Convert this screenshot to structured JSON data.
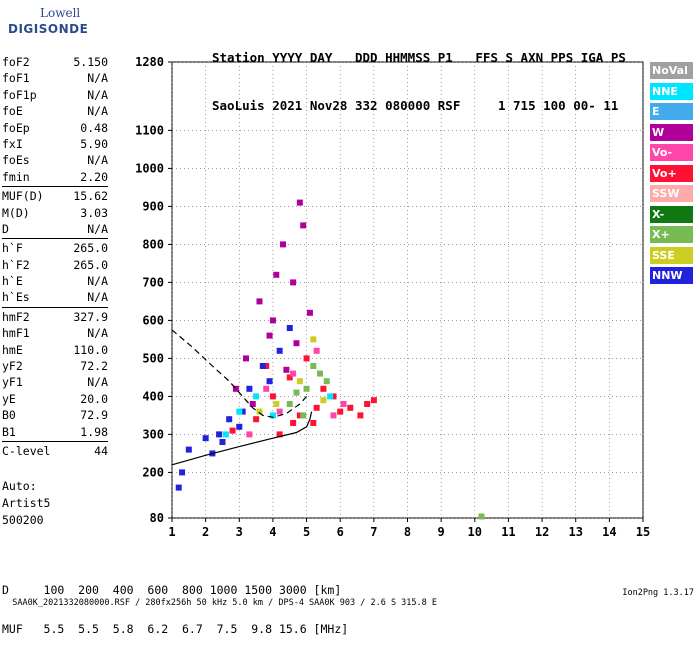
{
  "logo": {
    "brand": "Lowell",
    "product": "DIGISONDE"
  },
  "header": {
    "line1": "Station YYYY DAY   DDD HHMMSS P1   FFS S AXN PPS IGA PS",
    "line2": "SaoLuis 2021 Nov28 332 080000 RSF     1 715 100 00- 11"
  },
  "params": {
    "group1": [
      {
        "label": "foF2",
        "value": "5.150"
      },
      {
        "label": "foF1",
        "value": "N/A"
      },
      {
        "label": "foF1p",
        "value": "N/A"
      },
      {
        "label": "foE",
        "value": "N/A"
      },
      {
        "label": "foEp",
        "value": "0.48"
      },
      {
        "label": "fxI",
        "value": "5.90"
      },
      {
        "label": "foEs",
        "value": "N/A"
      },
      {
        "label": "fmin",
        "value": "2.20"
      }
    ],
    "group2": [
      {
        "label": "MUF(D)",
        "value": "15.62"
      },
      {
        "label": "M(D)",
        "value": "3.03"
      },
      {
        "label": "D",
        "value": "N/A"
      }
    ],
    "group3": [
      {
        "label": "h`F",
        "value": "265.0"
      },
      {
        "label": "h`F2",
        "value": "265.0"
      },
      {
        "label": "h`E",
        "value": "N/A"
      },
      {
        "label": "h`Es",
        "value": "N/A"
      }
    ],
    "group4": [
      {
        "label": "hmF2",
        "value": "327.9"
      },
      {
        "label": "hmF1",
        "value": "N/A"
      },
      {
        "label": "hmE",
        "value": "110.0"
      },
      {
        "label": "yF2",
        "value": "72.2"
      },
      {
        "label": "yF1",
        "value": "N/A"
      },
      {
        "label": "yE",
        "value": "20.0"
      },
      {
        "label": "B0",
        "value": "72.9"
      },
      {
        "label": "B1",
        "value": "1.98"
      }
    ],
    "group5": [
      {
        "label": "C-level",
        "value": "44"
      }
    ]
  },
  "auto": {
    "line1": "Auto:",
    "line2": "Artist5",
    "line3": "500200"
  },
  "legend": [
    {
      "label": "NoVal",
      "color": "#a0a0a0"
    },
    {
      "label": "NNE",
      "color": "#00e5ff"
    },
    {
      "label": "E",
      "color": "#44aaee"
    },
    {
      "label": "W",
      "color": "#b0009a"
    },
    {
      "label": "Vo-",
      "color": "#ff44aa"
    },
    {
      "label": "Vo+",
      "color": "#ff1133"
    },
    {
      "label": "SSW",
      "color": "#ffaaaa"
    },
    {
      "label": "X-",
      "color": "#117711"
    },
    {
      "label": "X+",
      "color": "#77bb55"
    },
    {
      "label": "SSE",
      "color": "#cccc22"
    },
    {
      "label": "NNW",
      "color": "#2222dd"
    }
  ],
  "muf_table": {
    "row1": "D     100  200  400  600  800 1000 1500 3000 [km]",
    "row2": "MUF   5.5  5.5  5.8  6.2  6.7  7.5  9.8 15.6 [MHz]"
  },
  "footer": {
    "left": "SAA0K_2021332080000.RSF / 280fx256h 50 kHz 5.0 km / DPS-4 SAA0K 903 / 2.6 S 315.8 E",
    "right": "Ion2Png 1.3.17"
  },
  "chart_data": {
    "type": "scatter",
    "title": "",
    "xlabel": "",
    "ylabel": "",
    "xlim": [
      1,
      15
    ],
    "ylim": [
      80,
      1280
    ],
    "x_ticks": [
      1,
      2,
      3,
      4,
      5,
      6,
      7,
      8,
      9,
      10,
      11,
      12,
      13,
      14,
      15
    ],
    "y_ticks": [
      80,
      200,
      300,
      400,
      500,
      600,
      700,
      800,
      900,
      1000,
      1100,
      1280
    ],
    "grid": true,
    "series": [
      {
        "name": "Vo+",
        "color": "#ff1133",
        "points": [
          [
            4.2,
            300
          ],
          [
            4.8,
            350
          ],
          [
            5.2,
            330
          ],
          [
            6.0,
            360
          ],
          [
            6.8,
            380
          ],
          [
            7.0,
            390
          ],
          [
            5.5,
            420
          ],
          [
            4.5,
            450
          ],
          [
            3.8,
            480
          ],
          [
            5.0,
            500
          ],
          [
            6.3,
            370
          ],
          [
            5.8,
            400
          ],
          [
            4.0,
            400
          ],
          [
            3.5,
            340
          ],
          [
            2.8,
            310
          ],
          [
            4.6,
            330
          ],
          [
            5.3,
            370
          ],
          [
            6.6,
            350
          ]
        ]
      },
      {
        "name": "W",
        "color": "#b0009a",
        "points": [
          [
            3.2,
            500
          ],
          [
            4.0,
            600
          ],
          [
            4.6,
            700
          ],
          [
            3.6,
            650
          ],
          [
            4.3,
            800
          ],
          [
            4.9,
            850
          ],
          [
            3.9,
            560
          ],
          [
            4.7,
            540
          ],
          [
            5.1,
            620
          ],
          [
            2.9,
            420
          ],
          [
            3.4,
            380
          ],
          [
            4.4,
            470
          ],
          [
            4.1,
            720
          ],
          [
            4.8,
            910
          ]
        ]
      },
      {
        "name": "NNW",
        "color": "#2222dd",
        "points": [
          [
            1.5,
            260
          ],
          [
            2.0,
            290
          ],
          [
            2.5,
            280
          ],
          [
            3.0,
            320
          ],
          [
            3.3,
            420
          ],
          [
            3.7,
            480
          ],
          [
            4.2,
            520
          ],
          [
            1.2,
            160
          ],
          [
            1.3,
            200
          ],
          [
            2.2,
            250
          ],
          [
            3.1,
            360
          ],
          [
            3.9,
            440
          ],
          [
            4.5,
            580
          ],
          [
            2.7,
            340
          ],
          [
            2.4,
            300
          ]
        ]
      },
      {
        "name": "X+",
        "color": "#77bb55",
        "points": [
          [
            4.5,
            380
          ],
          [
            5.0,
            420
          ],
          [
            5.4,
            460
          ],
          [
            4.7,
            410
          ],
          [
            5.2,
            480
          ],
          [
            4.9,
            350
          ],
          [
            5.6,
            440
          ],
          [
            10.2,
            84
          ]
        ]
      },
      {
        "name": "Vo-",
        "color": "#ff44aa",
        "points": [
          [
            3.8,
            420
          ],
          [
            4.6,
            460
          ],
          [
            5.3,
            520
          ],
          [
            6.1,
            380
          ],
          [
            4.2,
            360
          ],
          [
            5.8,
            350
          ],
          [
            3.3,
            300
          ]
        ]
      },
      {
        "name": "SSE",
        "color": "#cccc22",
        "points": [
          [
            4.1,
            380
          ],
          [
            4.8,
            440
          ],
          [
            5.5,
            390
          ],
          [
            3.6,
            360
          ],
          [
            5.2,
            550
          ]
        ]
      },
      {
        "name": "NNE",
        "color": "#00e5ff",
        "points": [
          [
            3.0,
            360
          ],
          [
            3.5,
            400
          ],
          [
            4.0,
            350
          ],
          [
            2.6,
            300
          ],
          [
            5.7,
            400
          ]
        ]
      }
    ],
    "lines": [
      {
        "name": "profile",
        "style": "solid",
        "points": [
          [
            1.0,
            220
          ],
          [
            2.0,
            245
          ],
          [
            3.0,
            268
          ],
          [
            4.0,
            290
          ],
          [
            4.7,
            305
          ],
          [
            5.0,
            320
          ],
          [
            5.1,
            340
          ],
          [
            5.15,
            360
          ]
        ]
      },
      {
        "name": "model",
        "style": "dashed",
        "points": [
          [
            1.0,
            575
          ],
          [
            1.6,
            530
          ],
          [
            2.2,
            480
          ],
          [
            2.7,
            440
          ],
          [
            3.1,
            400
          ],
          [
            3.4,
            370
          ],
          [
            3.7,
            350
          ],
          [
            4.0,
            345
          ],
          [
            4.4,
            355
          ],
          [
            4.8,
            380
          ],
          [
            5.0,
            400
          ]
        ]
      }
    ]
  }
}
